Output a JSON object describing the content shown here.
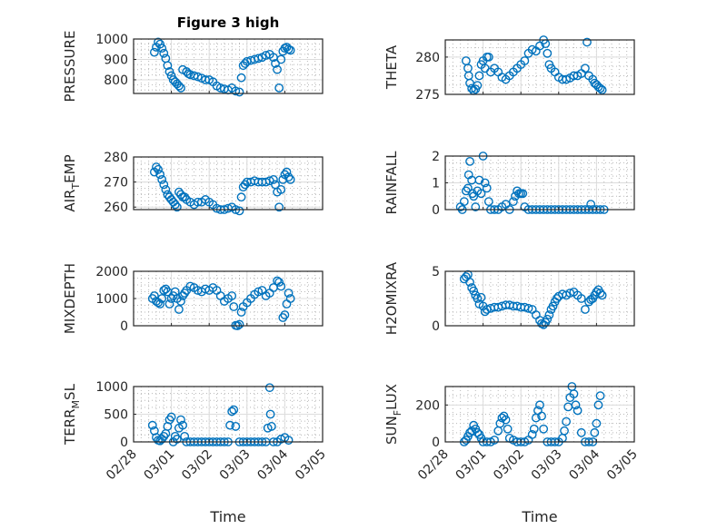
{
  "chart_data": {
    "type": "scatter",
    "figure_title": "Figure 3 high",
    "marker": "open-circle",
    "marker_color": "#0072BD",
    "xlabel": "Time",
    "x_ticks": [
      "02/28",
      "03/01",
      "03/02",
      "03/03",
      "03/04",
      "03/05"
    ],
    "x_range_days": [
      0,
      5
    ],
    "grid": "major+minor",
    "panels": [
      {
        "id": "pressure",
        "ylabel": "PRESSURE",
        "ylabel_sub": null,
        "ylim": [
          733,
          1000
        ],
        "yticks": [
          800,
          900,
          1000
        ],
        "x": [
          0.55,
          0.6,
          0.65,
          0.7,
          0.75,
          0.8,
          0.85,
          0.9,
          0.95,
          1.0,
          1.05,
          1.1,
          1.15,
          1.2,
          1.25,
          1.3,
          1.4,
          1.45,
          1.5,
          1.6,
          1.7,
          1.8,
          1.9,
          2.0,
          2.1,
          2.2,
          2.3,
          2.4,
          2.5,
          2.6,
          2.7,
          2.8,
          2.85,
          2.9,
          2.95,
          3.0,
          3.1,
          3.2,
          3.3,
          3.4,
          3.5,
          3.6,
          3.7,
          3.75,
          3.8,
          3.85,
          3.9,
          3.95,
          4.0,
          4.05,
          4.1,
          4.15
        ],
        "y": [
          935,
          960,
          985,
          975,
          955,
          930,
          905,
          870,
          840,
          820,
          800,
          790,
          780,
          770,
          760,
          850,
          840,
          830,
          825,
          820,
          815,
          808,
          800,
          800,
          790,
          770,
          760,
          755,
          750,
          760,
          745,
          740,
          810,
          870,
          880,
          890,
          895,
          900,
          905,
          910,
          920,
          925,
          910,
          880,
          850,
          760,
          900,
          940,
          955,
          960,
          950,
          945
        ]
      },
      {
        "id": "theta",
        "ylabel": "THETA",
        "ylabel_sub": null,
        "ylim": [
          275,
          282.3
        ],
        "yticks": [
          275,
          280
        ],
        "x": [
          0.55,
          0.6,
          0.62,
          0.65,
          0.7,
          0.75,
          0.8,
          0.85,
          0.9,
          0.95,
          1.0,
          1.05,
          1.1,
          1.15,
          1.2,
          1.3,
          1.4,
          1.5,
          1.6,
          1.7,
          1.8,
          1.9,
          2.0,
          2.1,
          2.2,
          2.3,
          2.4,
          2.5,
          2.6,
          2.65,
          2.7,
          2.75,
          2.8,
          2.9,
          3.0,
          3.1,
          3.2,
          3.3,
          3.4,
          3.5,
          3.6,
          3.7,
          3.75,
          3.8,
          3.9,
          3.95,
          4.0,
          4.05,
          4.1,
          4.15
        ],
        "y": [
          279.5,
          278.5,
          277.5,
          276.5,
          275.8,
          275.5,
          275.7,
          276.2,
          277.5,
          279,
          279.5,
          278.5,
          280,
          280,
          278,
          278.5,
          278,
          277.3,
          277,
          277.5,
          278,
          278.5,
          279,
          279.5,
          280.5,
          281,
          280.8,
          281.5,
          282.3,
          281.8,
          280.5,
          279,
          278.5,
          278,
          277.3,
          277,
          277,
          277.2,
          277.5,
          277.5,
          277.8,
          278.5,
          282,
          277.5,
          277,
          276.5,
          276.3,
          276,
          275.8,
          275.6
        ]
      },
      {
        "id": "air_temp",
        "ylabel": "AIR",
        "ylabel_sub": "T",
        "ylabel_rest": "EMP",
        "ylim": [
          259,
          280
        ],
        "yticks": [
          260,
          270,
          280
        ],
        "x": [
          0.55,
          0.6,
          0.65,
          0.7,
          0.75,
          0.8,
          0.85,
          0.9,
          0.95,
          1.0,
          1.05,
          1.1,
          1.15,
          1.2,
          1.25,
          1.3,
          1.35,
          1.4,
          1.5,
          1.6,
          1.7,
          1.8,
          1.9,
          2.0,
          2.1,
          2.2,
          2.3,
          2.4,
          2.5,
          2.6,
          2.7,
          2.8,
          2.85,
          2.9,
          2.95,
          3.0,
          3.1,
          3.2,
          3.3,
          3.4,
          3.5,
          3.6,
          3.7,
          3.75,
          3.8,
          3.85,
          3.9,
          3.95,
          4.0,
          4.05,
          4.1,
          4.15
        ],
        "y": [
          274,
          276,
          275,
          273,
          271,
          269,
          267,
          265,
          264,
          263,
          262,
          261,
          260,
          266,
          265,
          264,
          264,
          263,
          262,
          261,
          262,
          262,
          263,
          262,
          261,
          259.5,
          259,
          259,
          259.5,
          260,
          259,
          258.5,
          264,
          268,
          269,
          270,
          270,
          270.5,
          270,
          270,
          270,
          270.5,
          271,
          269,
          266,
          260,
          267,
          271,
          273,
          274,
          272,
          271
        ]
      },
      {
        "id": "rainfall",
        "ylabel": "RAINFALL",
        "ylabel_sub": null,
        "ylim": [
          0,
          2
        ],
        "yticks": [
          0,
          1,
          2
        ],
        "x": [
          0.4,
          0.45,
          0.5,
          0.55,
          0.6,
          0.62,
          0.65,
          0.7,
          0.72,
          0.75,
          0.8,
          0.85,
          0.9,
          0.95,
          1.0,
          1.05,
          1.1,
          1.15,
          1.2,
          1.3,
          1.4,
          1.5,
          1.6,
          1.7,
          1.8,
          1.85,
          1.9,
          1.95,
          2.0,
          2.05,
          2.1,
          2.2,
          2.3,
          2.4,
          2.5,
          2.6,
          2.7,
          2.8,
          2.9,
          3.0,
          3.1,
          3.2,
          3.3,
          3.4,
          3.5,
          3.6,
          3.7,
          3.8,
          3.85,
          3.9,
          4.0,
          4.1,
          4.2
        ],
        "y": [
          0.1,
          0,
          0.3,
          0.7,
          0.8,
          1.3,
          1.8,
          1.1,
          0.6,
          0.5,
          0.1,
          0.7,
          1.1,
          0.6,
          2.0,
          1.0,
          0.8,
          0.3,
          0,
          0,
          0,
          0.1,
          0.2,
          0,
          0.3,
          0.5,
          0.7,
          0.6,
          0.6,
          0.6,
          0.1,
          0,
          0,
          0,
          0,
          0,
          0,
          0,
          0,
          0,
          0,
          0,
          0,
          0,
          0,
          0,
          0,
          0,
          0.2,
          0,
          0,
          0,
          0
        ]
      },
      {
        "id": "mixdepth",
        "ylabel": "MIXDEPTH",
        "ylabel_sub": null,
        "ylim": [
          0,
          2000
        ],
        "yticks": [
          0,
          1000,
          2000
        ],
        "x": [
          0.5,
          0.55,
          0.6,
          0.65,
          0.7,
          0.75,
          0.8,
          0.85,
          0.9,
          0.95,
          1.0,
          1.05,
          1.1,
          1.15,
          1.2,
          1.25,
          1.3,
          1.35,
          1.4,
          1.5,
          1.6,
          1.7,
          1.8,
          1.9,
          2.0,
          2.1,
          2.2,
          2.3,
          2.4,
          2.5,
          2.6,
          2.65,
          2.7,
          2.75,
          2.8,
          2.85,
          2.9,
          3.0,
          3.1,
          3.2,
          3.3,
          3.4,
          3.5,
          3.6,
          3.7,
          3.8,
          3.85,
          3.9,
          3.95,
          4.0,
          4.05,
          4.1,
          4.15
        ],
        "y": [
          1000,
          1100,
          900,
          850,
          800,
          1000,
          1300,
          1350,
          1250,
          800,
          1000,
          1100,
          1250,
          1000,
          600,
          900,
          1100,
          1200,
          1300,
          1450,
          1400,
          1300,
          1250,
          1350,
          1300,
          1400,
          1300,
          1100,
          900,
          1000,
          1100,
          700,
          10,
          0,
          50,
          500,
          700,
          850,
          1000,
          1150,
          1250,
          1300,
          1100,
          1200,
          1400,
          1650,
          1600,
          1450,
          300,
          400,
          800,
          1200,
          1000
        ]
      },
      {
        "id": "h2omixra",
        "ylabel": "H2OMIXRA",
        "ylabel_sub": null,
        "ylim": [
          0,
          5
        ],
        "yticks": [
          0,
          5
        ],
        "x": [
          0.5,
          0.55,
          0.6,
          0.65,
          0.7,
          0.75,
          0.8,
          0.85,
          0.9,
          0.95,
          1.0,
          1.05,
          1.1,
          1.2,
          1.3,
          1.4,
          1.5,
          1.6,
          1.7,
          1.8,
          1.9,
          2.0,
          2.1,
          2.2,
          2.3,
          2.4,
          2.5,
          2.55,
          2.6,
          2.65,
          2.7,
          2.75,
          2.8,
          2.85,
          2.9,
          2.95,
          3.0,
          3.1,
          3.2,
          3.3,
          3.4,
          3.5,
          3.6,
          3.7,
          3.8,
          3.85,
          3.9,
          3.95,
          4.0,
          4.05,
          4.1,
          4.15
        ],
        "y": [
          4.3,
          4.5,
          4.7,
          4.0,
          3.5,
          3.2,
          2.8,
          2.5,
          2.0,
          2.6,
          1.8,
          1.3,
          1.5,
          1.6,
          1.7,
          1.7,
          1.8,
          1.9,
          1.9,
          1.8,
          1.8,
          1.7,
          1.7,
          1.6,
          1.5,
          1.0,
          0.5,
          0.2,
          0.1,
          0.3,
          0.6,
          1.0,
          1.5,
          1.8,
          2.2,
          2.5,
          2.7,
          2.9,
          2.8,
          3.0,
          3.1,
          2.8,
          2.5,
          1.5,
          2.2,
          2.4,
          2.5,
          2.8,
          3.1,
          3.3,
          3.0,
          2.8
        ]
      },
      {
        "id": "terr_msl",
        "ylabel": "TERR",
        "ylabel_sub": "M",
        "ylabel_rest": "SL",
        "ylim": [
          0,
          1000
        ],
        "yticks": [
          0,
          500,
          1000
        ],
        "x": [
          0.5,
          0.55,
          0.6,
          0.65,
          0.7,
          0.75,
          0.8,
          0.85,
          0.9,
          0.95,
          1.0,
          1.05,
          1.1,
          1.15,
          1.2,
          1.25,
          1.3,
          1.35,
          1.4,
          1.5,
          1.6,
          1.7,
          1.8,
          1.9,
          2.0,
          2.1,
          2.2,
          2.3,
          2.4,
          2.5,
          2.55,
          2.6,
          2.65,
          2.7,
          2.8,
          2.9,
          3.0,
          3.1,
          3.2,
          3.3,
          3.4,
          3.5,
          3.55,
          3.6,
          3.62,
          3.65,
          3.7,
          3.8,
          3.9,
          4.0,
          4.1
        ],
        "y": [
          300,
          200,
          80,
          30,
          20,
          50,
          100,
          150,
          280,
          400,
          450,
          0,
          100,
          50,
          250,
          400,
          300,
          100,
          0,
          0,
          0,
          0,
          0,
          0,
          0,
          0,
          0,
          0,
          0,
          0,
          300,
          550,
          580,
          280,
          0,
          0,
          0,
          0,
          0,
          0,
          0,
          0,
          250,
          980,
          500,
          280,
          0,
          0,
          50,
          80,
          30
        ]
      },
      {
        "id": "sun_flux",
        "ylabel": "SUN",
        "ylabel_sub": "F",
        "ylabel_rest": "LUX",
        "ylim": [
          0,
          300
        ],
        "yticks": [
          0,
          200
        ],
        "x": [
          0.5,
          0.55,
          0.6,
          0.65,
          0.7,
          0.75,
          0.8,
          0.85,
          0.9,
          0.95,
          1.0,
          1.1,
          1.2,
          1.3,
          1.4,
          1.45,
          1.5,
          1.55,
          1.6,
          1.65,
          1.7,
          1.8,
          1.9,
          2.0,
          2.1,
          2.2,
          2.3,
          2.35,
          2.4,
          2.45,
          2.5,
          2.55,
          2.6,
          2.7,
          2.8,
          2.9,
          3.0,
          3.1,
          3.15,
          3.2,
          3.25,
          3.3,
          3.35,
          3.4,
          3.45,
          3.5,
          3.6,
          3.7,
          3.8,
          3.9,
          3.95,
          4.0,
          4.05,
          4.1
        ],
        "y": [
          0,
          10,
          30,
          50,
          60,
          90,
          70,
          50,
          40,
          20,
          0,
          0,
          0,
          10,
          60,
          100,
          130,
          140,
          120,
          70,
          20,
          10,
          0,
          0,
          0,
          10,
          40,
          70,
          130,
          170,
          200,
          140,
          70,
          0,
          0,
          0,
          0,
          20,
          60,
          110,
          190,
          240,
          300,
          260,
          200,
          170,
          50,
          0,
          0,
          0,
          50,
          100,
          200,
          250
        ]
      }
    ]
  }
}
